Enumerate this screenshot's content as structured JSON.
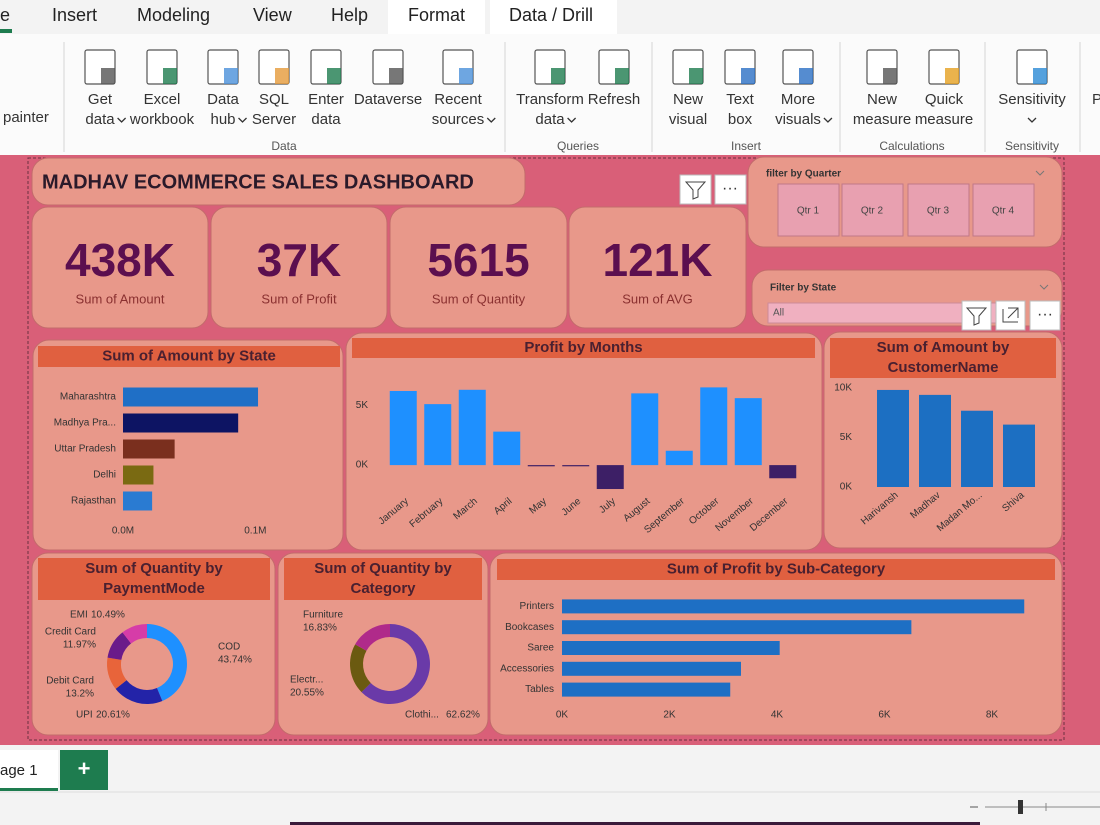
{
  "ribbon": {
    "tabs": [
      "e",
      "Insert",
      "Modeling",
      "View",
      "Help",
      "Format",
      "Data / Drill"
    ],
    "clipped_left": "painter",
    "clipped_right": "P",
    "groups": [
      {
        "label": "Data",
        "buttons": [
          {
            "lines": [
              "Get",
              "data"
            ],
            "menu": true
          },
          {
            "lines": [
              "Excel",
              "workbook"
            ],
            "menu": false
          },
          {
            "lines": [
              "Data",
              "hub"
            ],
            "menu": true
          },
          {
            "lines": [
              "SQL",
              "Server"
            ],
            "menu": false
          },
          {
            "lines": [
              "Enter",
              "data"
            ],
            "menu": false
          },
          {
            "lines": [
              "Dataverse"
            ],
            "menu": false
          },
          {
            "lines": [
              "Recent",
              "sources"
            ],
            "menu": true
          }
        ]
      },
      {
        "label": "Queries",
        "buttons": [
          {
            "lines": [
              "Transform",
              "data"
            ],
            "menu": true
          },
          {
            "lines": [
              "Refresh"
            ],
            "menu": false
          }
        ]
      },
      {
        "label": "Insert",
        "buttons": [
          {
            "lines": [
              "New",
              "visual"
            ],
            "menu": false
          },
          {
            "lines": [
              "Text",
              "box"
            ],
            "menu": false
          },
          {
            "lines": [
              "More",
              "visuals"
            ],
            "menu": true
          }
        ]
      },
      {
        "label": "Calculations",
        "buttons": [
          {
            "lines": [
              "New",
              "measure"
            ],
            "menu": false
          },
          {
            "lines": [
              "Quick",
              "measure"
            ],
            "menu": false
          }
        ]
      },
      {
        "label": "Sensitivity",
        "buttons": [
          {
            "lines": [
              "Sensitivity"
            ],
            "menu": true
          }
        ]
      }
    ]
  },
  "dashboard": {
    "title": "MADHAV ECOMMERCE SALES DASHBOARD",
    "cards": [
      {
        "value": "438K",
        "label": "Sum of Amount"
      },
      {
        "value": "37K",
        "label": "Sum of Profit"
      },
      {
        "value": "5615",
        "label": "Sum of Quantity"
      },
      {
        "value": "121K",
        "label": "Sum of AVG"
      }
    ],
    "quarter_filter": {
      "title": "filter by Quarter",
      "options": [
        "Qtr 1",
        "Qtr 2",
        "Qtr 3",
        "Qtr 4"
      ]
    },
    "state_filter": {
      "title": "Filter by State",
      "selected": "All"
    },
    "charts": [
      {
        "type": "hbar",
        "title_lines": [
          "Sum of Amount by State"
        ],
        "categories": [
          "Maharashtra",
          "Madhya Pra...",
          "Uttar Pradesh",
          "Delhi",
          "Rajasthan"
        ],
        "values": [
          102000,
          87000,
          39000,
          23000,
          22000
        ],
        "colors": [
          "#1f6fc6",
          "#0d1463",
          "#7a2f1e",
          "#7a6a12",
          "#2a7bd2"
        ],
        "xlim": [
          0,
          105000
        ],
        "xticks": [
          {
            "value": 0,
            "label": "0.0M"
          },
          {
            "value": 100000,
            "label": "0.1M"
          }
        ]
      },
      {
        "type": "bar",
        "title_lines": [
          "Profit by Months"
        ],
        "categories": [
          "January",
          "February",
          "March",
          "April",
          "May",
          "June",
          "July",
          "August",
          "September",
          "October",
          "November",
          "December"
        ],
        "values": [
          6200,
          5100,
          6300,
          2800,
          -100,
          -100,
          -2000,
          6000,
          1200,
          6500,
          5600,
          -1100
        ],
        "color": "#1e90ff",
        "negative_color": "#3d1f66",
        "ylim": [
          -2500,
          6700
        ],
        "yticks": [
          {
            "value": 0,
            "label": "0K"
          },
          {
            "value": 5000,
            "label": "5K"
          }
        ]
      },
      {
        "type": "bar",
        "title_lines": [
          "Sum of Amount by",
          "CustomerName"
        ],
        "categories": [
          "Harivansh",
          "Madhav",
          "Madan Mo...",
          "Shiva"
        ],
        "values": [
          9800,
          9300,
          7700,
          6300
        ],
        "color": "#1c6fc2",
        "ylim": [
          0,
          10500
        ],
        "yticks": [
          {
            "value": 0,
            "label": "0K"
          },
          {
            "value": 5000,
            "label": "5K"
          },
          {
            "value": 10000,
            "label": "10K"
          }
        ]
      },
      {
        "type": "donut",
        "title_lines": [
          "Sum of Quantity by",
          "PaymentMode"
        ],
        "categories": [
          "COD",
          "UPI",
          "Debit Card",
          "Credit Card",
          "EMI"
        ],
        "values": [
          43.74,
          20.61,
          13.2,
          11.97,
          10.49
        ],
        "value_labels": [
          "43.74%",
          "20.61%",
          "13.2%",
          "11.97%",
          "10.49%"
        ],
        "colors": [
          "#1e90ff",
          "#2323a8",
          "#e8643a",
          "#6a1b8a",
          "#d63ca8"
        ]
      },
      {
        "type": "donut",
        "title_lines": [
          "Sum of Quantity by",
          "Category"
        ],
        "categories": [
          "Clothi...",
          "Electr...",
          "Furniture"
        ],
        "values": [
          62.62,
          20.55,
          16.83
        ],
        "value_labels": [
          "62.62%",
          "20.55%",
          "16.83%"
        ],
        "colors": [
          "#6a3aa8",
          "#6b5a10",
          "#b02a8a"
        ]
      },
      {
        "type": "hbar",
        "title_lines": [
          "Sum of Profit by Sub-Category"
        ],
        "categories": [
          "Printers",
          "Bookcases",
          "Saree",
          "Accessories",
          "Tables"
        ],
        "values": [
          8600,
          6500,
          4050,
          3330,
          3130
        ],
        "colors": [
          "#1e6fc4",
          "#1e6fc4",
          "#1e6fc4",
          "#1e6fc4",
          "#1e6fc4"
        ],
        "xlim": [
          0,
          8800
        ],
        "xticks": [
          {
            "value": 0,
            "label": "0K"
          },
          {
            "value": 2000,
            "label": "2K"
          },
          {
            "value": 4000,
            "label": "4K"
          },
          {
            "value": 6000,
            "label": "6K"
          },
          {
            "value": 8000,
            "label": "8K"
          }
        ]
      }
    ]
  },
  "page_tab": "age 1",
  "add_page": "+"
}
